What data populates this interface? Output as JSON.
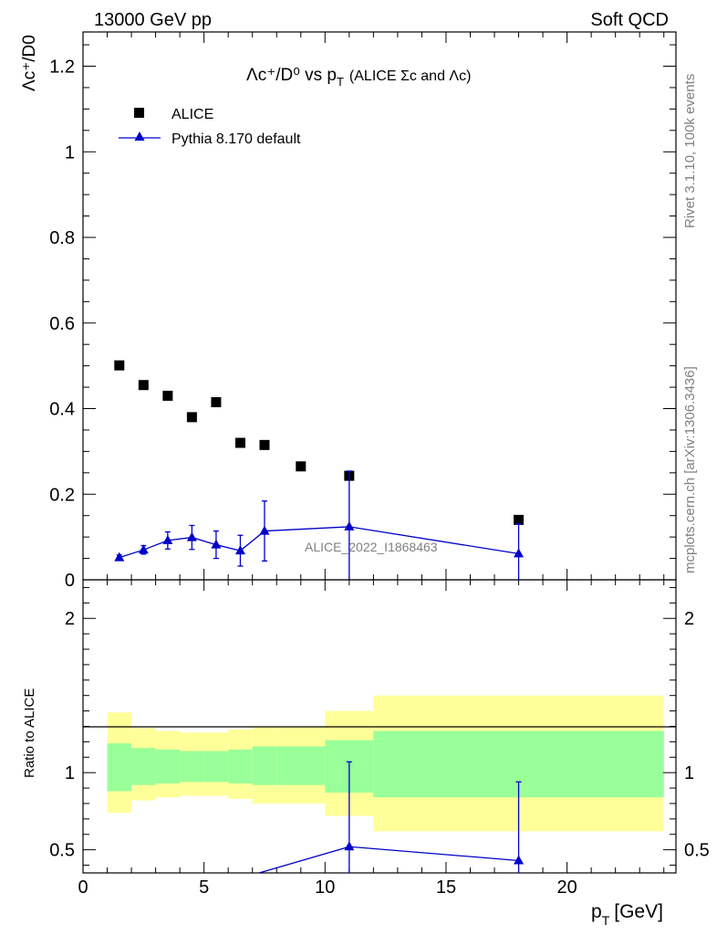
{
  "header": {
    "energy_label": "13000 GeV pp",
    "category_label": "Soft QCD"
  },
  "side": {
    "rivet_label": "Rivet 3.1.10,  100k events",
    "source_label": "mcplots.cern.ch [arXiv:1306.3436]"
  },
  "plot": {
    "title_main": "Λc⁺/D⁰ vs p",
    "title_sub": "T",
    "title_paren": "(ALICE Σc and Λc)",
    "watermark": "ALICE_2022_I1868463",
    "ylabel_top": "Λc⁺/D0",
    "ylabel_bottom": "Ratio to ALICE",
    "xlabel": "p",
    "xlabel_sub": "T",
    "xlabel_unit": "[GeV]"
  },
  "legend": {
    "data_label": "ALICE",
    "mc_label": "Pythia 8.170 default"
  },
  "colors": {
    "data": "#000000",
    "mc": "#0000cc",
    "band_inner": "#99ff99",
    "band_outer": "#ffff99"
  },
  "chart_data": [
    {
      "type": "scatter",
      "panel": "main",
      "title": "Λc⁺/D⁰ vs pT (ALICE Σc and Λc)",
      "xlabel": "pT [GeV]",
      "ylabel": "Λc⁺/D0",
      "xlim": [
        0,
        24.5
      ],
      "ylim": [
        0,
        1.28
      ],
      "yticks": [
        0,
        0.2,
        0.4,
        0.6,
        0.8,
        1,
        1.2
      ],
      "ytick_labels": [
        "0",
        "0.2",
        "0.4",
        "0.6",
        "0.8",
        "1",
        "1.2"
      ],
      "series": [
        {
          "name": "ALICE",
          "marker": "square",
          "x": [
            1.5,
            2.5,
            3.5,
            4.5,
            5.5,
            6.5,
            7.5,
            9,
            11,
            18
          ],
          "y": [
            0.501,
            0.455,
            0.43,
            0.38,
            0.415,
            0.32,
            0.315,
            0.265,
            0.243,
            0.14
          ]
        },
        {
          "name": "Pythia 8.170 default",
          "marker": "triangle",
          "x": [
            1.5,
            2.5,
            3.5,
            4.5,
            5.5,
            6.5,
            7.5,
            11,
            18
          ],
          "y": [
            0.052,
            0.07,
            0.092,
            0.099,
            0.082,
            0.068,
            0.114,
            0.124,
            0.061
          ],
          "yerr": [
            0.006,
            0.01,
            0.02,
            0.028,
            0.032,
            0.036,
            0.07,
            0.13,
            0.07
          ]
        }
      ]
    },
    {
      "type": "line",
      "panel": "ratio",
      "ylabel": "Ratio to ALICE",
      "xlabel": "pT [GeV]",
      "xlim": [
        0,
        24.5
      ],
      "ylim": [
        0.35,
        2.25
      ],
      "xticks": [
        0,
        5,
        10,
        15,
        20
      ],
      "xtick_labels": [
        "0",
        "5",
        "10",
        "15",
        "20"
      ],
      "yticks": [
        0.5,
        1,
        2
      ],
      "ytick_labels": [
        "0.5",
        "1",
        "2"
      ],
      "bands": [
        {
          "xlow": 1,
          "xhigh": 2,
          "inner": [
            0.88,
            1.19
          ],
          "outer": [
            0.74,
            1.39
          ]
        },
        {
          "xlow": 2,
          "xhigh": 3,
          "inner": [
            0.92,
            1.16
          ],
          "outer": [
            0.82,
            1.29
          ]
        },
        {
          "xlow": 3,
          "xhigh": 4,
          "inner": [
            0.93,
            1.15
          ],
          "outer": [
            0.84,
            1.27
          ]
        },
        {
          "xlow": 4,
          "xhigh": 5,
          "inner": [
            0.94,
            1.14
          ],
          "outer": [
            0.85,
            1.26
          ]
        },
        {
          "xlow": 5,
          "xhigh": 6,
          "inner": [
            0.94,
            1.14
          ],
          "outer": [
            0.85,
            1.26
          ]
        },
        {
          "xlow": 6,
          "xhigh": 7,
          "inner": [
            0.93,
            1.15
          ],
          "outer": [
            0.83,
            1.28
          ]
        },
        {
          "xlow": 7,
          "xhigh": 8,
          "inner": [
            0.92,
            1.17
          ],
          "outer": [
            0.8,
            1.3
          ]
        },
        {
          "xlow": 8,
          "xhigh": 10,
          "inner": [
            0.92,
            1.17
          ],
          "outer": [
            0.8,
            1.3
          ]
        },
        {
          "xlow": 10,
          "xhigh": 12,
          "inner": [
            0.87,
            1.21
          ],
          "outer": [
            0.72,
            1.4
          ]
        },
        {
          "xlow": 12,
          "xhigh": 24,
          "inner": [
            0.84,
            1.27
          ],
          "outer": [
            0.62,
            1.5
          ]
        }
      ],
      "series": [
        {
          "name": "Pythia 8.170 default / ALICE",
          "marker": "triangle",
          "x": [
            7.5,
            11,
            18
          ],
          "y": [
            0.36,
            0.52,
            0.43
          ],
          "yerr": [
            0.0,
            0.55,
            0.51
          ]
        }
      ]
    }
  ]
}
